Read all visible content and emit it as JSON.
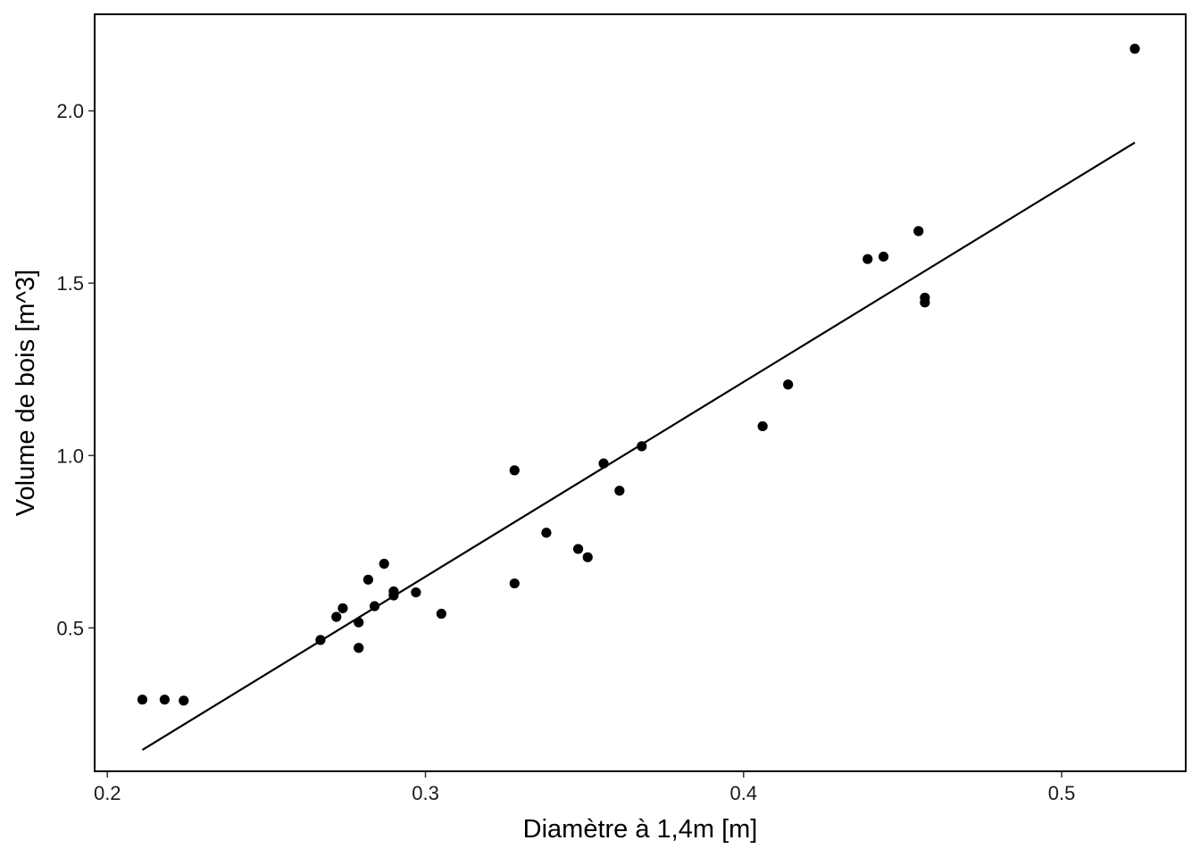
{
  "chart_data": {
    "type": "scatter",
    "title": "",
    "xlabel": "Diamètre à 1,4m  [m]",
    "ylabel": "Volume de bois  [m^3]",
    "xlim": [
      0.196,
      0.539
    ],
    "ylim": [
      0.084,
      2.28
    ],
    "xticks": [
      0.2,
      0.3,
      0.4,
      0.5
    ],
    "xtick_labels": [
      "0.2",
      "0.3",
      "0.4",
      "0.5"
    ],
    "yticks": [
      0.5,
      1.0,
      1.5,
      2.0
    ],
    "ytick_labels": [
      "0.5",
      "1.0",
      "1.5",
      "2.0"
    ],
    "grid": false,
    "legend": "none",
    "colors": {
      "points": "#000000",
      "line": "#000000",
      "frame": "#000000"
    },
    "points": [
      {
        "x": 0.211,
        "y": 0.292
      },
      {
        "x": 0.218,
        "y": 0.292
      },
      {
        "x": 0.224,
        "y": 0.289
      },
      {
        "x": 0.267,
        "y": 0.465
      },
      {
        "x": 0.272,
        "y": 0.532
      },
      {
        "x": 0.274,
        "y": 0.557
      },
      {
        "x": 0.279,
        "y": 0.516
      },
      {
        "x": 0.279,
        "y": 0.442
      },
      {
        "x": 0.282,
        "y": 0.64
      },
      {
        "x": 0.284,
        "y": 0.563
      },
      {
        "x": 0.287,
        "y": 0.686
      },
      {
        "x": 0.29,
        "y": 0.606
      },
      {
        "x": 0.29,
        "y": 0.594
      },
      {
        "x": 0.297,
        "y": 0.603
      },
      {
        "x": 0.305,
        "y": 0.541
      },
      {
        "x": 0.328,
        "y": 0.957
      },
      {
        "x": 0.328,
        "y": 0.629
      },
      {
        "x": 0.338,
        "y": 0.776
      },
      {
        "x": 0.348,
        "y": 0.729
      },
      {
        "x": 0.351,
        "y": 0.705
      },
      {
        "x": 0.356,
        "y": 0.977
      },
      {
        "x": 0.361,
        "y": 0.898
      },
      {
        "x": 0.368,
        "y": 1.027
      },
      {
        "x": 0.406,
        "y": 1.085
      },
      {
        "x": 0.414,
        "y": 1.206
      },
      {
        "x": 0.439,
        "y": 1.57
      },
      {
        "x": 0.444,
        "y": 1.577
      },
      {
        "x": 0.455,
        "y": 1.651
      },
      {
        "x": 0.457,
        "y": 1.458
      },
      {
        "x": 0.457,
        "y": 1.444
      },
      {
        "x": 0.523,
        "y": 2.18
      }
    ],
    "fit_line": {
      "x": [
        0.211,
        0.523
      ],
      "y": [
        0.146,
        1.908
      ]
    }
  }
}
